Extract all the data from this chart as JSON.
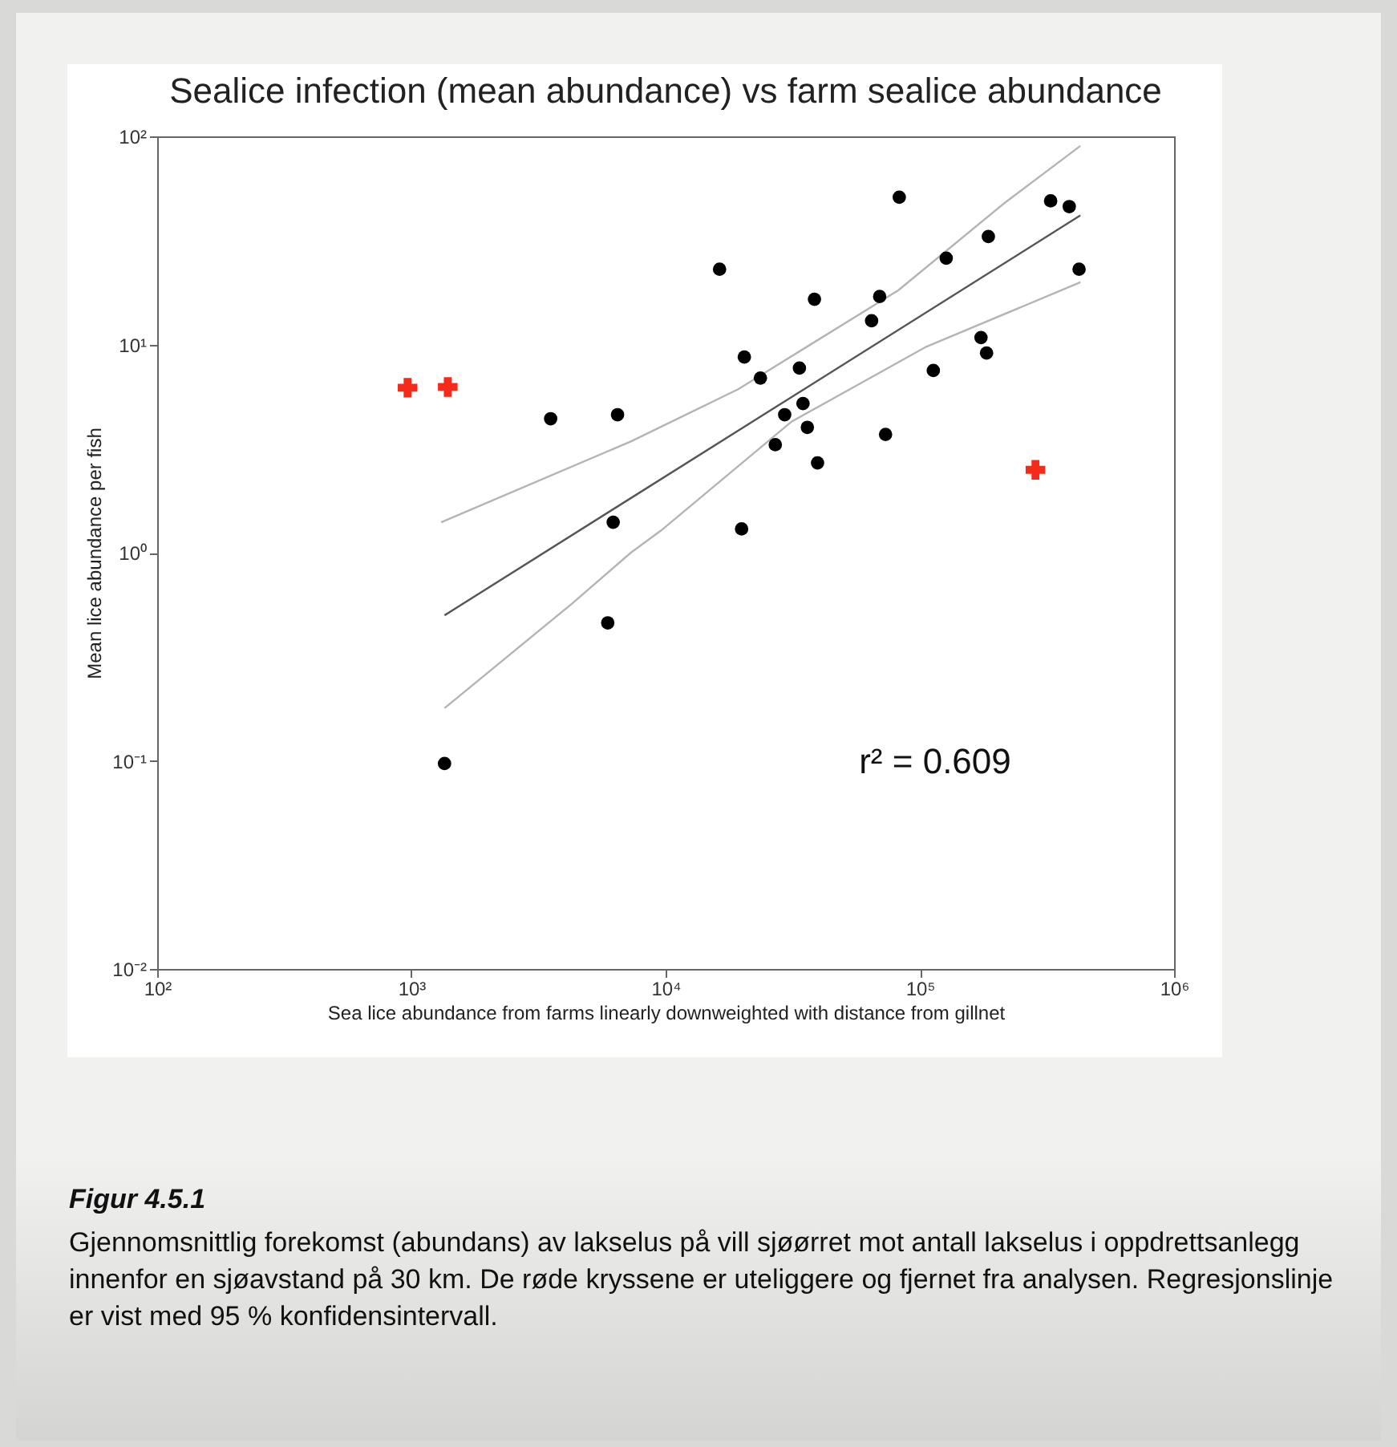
{
  "chart_data": {
    "type": "scatter",
    "title": "Sealice infection (mean abundance) vs farm sealice abundance",
    "xlabel": "Sea lice abundance from farms linearly downweighted with distance from gillnet",
    "ylabel": "Mean lice abundance per fish",
    "log": "xy",
    "xlim": [
      100,
      1000000
    ],
    "ylim": [
      0.01,
      100
    ],
    "xticks": [
      {
        "value": 100,
        "label": "10²"
      },
      {
        "value": 1000,
        "label": "10³"
      },
      {
        "value": 10000,
        "label": "10⁴"
      },
      {
        "value": 100000,
        "label": "10⁵"
      },
      {
        "value": 1000000,
        "label": "10⁶"
      }
    ],
    "yticks": [
      {
        "value": 0.01,
        "label": "10⁻²"
      },
      {
        "value": 0.1,
        "label": "10⁻¹"
      },
      {
        "value": 1,
        "label": "10⁰"
      },
      {
        "value": 10,
        "label": "10¹"
      },
      {
        "value": 100,
        "label": "10²"
      }
    ],
    "annotations": [
      "r² = 0.609",
      "Figur 4.5.1",
      "Gjennomsnittlig forekomst (abundans) av lakselus på vill sjøørret mot antall lakselus i oppdrettsanlegg innenfor en sjøavstand på 30 km. De røde kryssene er uteliggere og fjernet fra analysen. Regresjonslinje er vist med 95 % konfidensintervall."
    ],
    "series": [
      {
        "type": "line",
        "color": "#b4b4b4",
        "line_style": "solid",
        "x": [
          1310,
          7300,
          19300,
          82200,
          216000,
          428000
        ],
        "values": [
          1.4,
          3.42,
          6.1,
          18.2,
          48,
          90
        ]
      },
      {
        "type": "line",
        "color": "#b4b4b4",
        "line_style": "solid",
        "x": [
          1350,
          4290,
          7300,
          9770,
          31300,
          105000,
          428000
        ],
        "values": [
          0.179,
          0.57,
          1.0,
          1.3,
          4.26,
          9.7,
          19.9
        ]
      },
      {
        "type": "line",
        "color": "#555555",
        "line_style": "solid",
        "x": [
          1350,
          428000
        ],
        "values": [
          0.5,
          41.7
        ]
      },
      {
        "color": "#000000",
        "marker": "circle",
        "x": [
          1350,
          5920,
          6220,
          3530,
          6470,
          83000,
          16300,
          327000,
          387000,
          186000,
          127000,
          423000,
          38500,
          69500,
          64600,
          20400,
          23600,
          33600,
          174000,
          183000,
          113000,
          34700,
          29400,
          36100,
          27000,
          73300,
          39600,
          19900
        ],
        "values": [
          0.097,
          0.46,
          1.4,
          4.4,
          4.6,
          51,
          23,
          49,
          46,
          33,
          26,
          23,
          16.5,
          17,
          13,
          8.7,
          6.9,
          7.7,
          10.8,
          9.1,
          7.5,
          5.2,
          4.6,
          4.0,
          3.3,
          3.7,
          2.7,
          1.3
        ]
      },
      {
        "color": "#f52a1a",
        "marker": "cross",
        "x": [
          966,
          1390,
          285000
        ],
        "values": [
          6.2,
          6.25,
          2.5
        ]
      }
    ]
  }
}
